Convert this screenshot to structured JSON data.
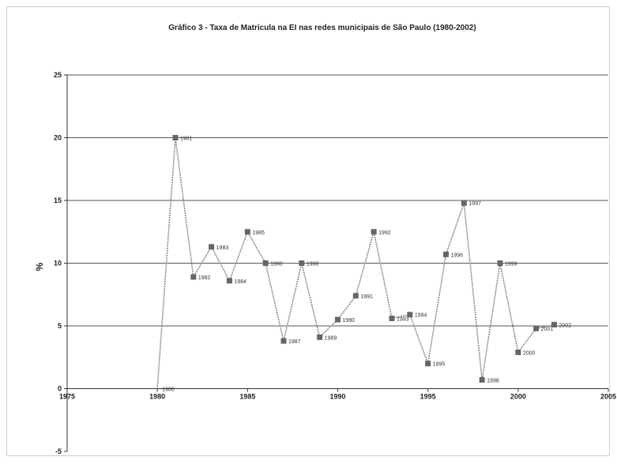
{
  "chart_data": {
    "type": "line",
    "title": "Gráfico 3 - Taxa de Matrícula na EI nas redes municipais de São Paulo (1980-2002)",
    "xlabel": "",
    "ylabel": "%",
    "xlim": [
      1975,
      2005
    ],
    "ylim": [
      -5,
      25
    ],
    "x_ticks": [
      1975,
      1980,
      1985,
      1990,
      1995,
      2000,
      2005
    ],
    "x_tick_labels": [
      "1975",
      "1980",
      "1985",
      "1990",
      "1995",
      "2000",
      "2005"
    ],
    "y_ticks": [
      -5,
      0,
      5,
      10,
      15,
      20,
      25
    ],
    "y_tick_labels": [
      "-5",
      "0",
      "5",
      "10",
      "15",
      "20",
      "25"
    ],
    "grid": "horizontal",
    "legend": "none",
    "series": [
      {
        "x": [
          1980,
          1981,
          1982,
          1983,
          1984,
          1985,
          1986,
          1987,
          1988,
          1989,
          1990,
          1991,
          1992,
          1993,
          1994,
          1995,
          1996,
          1997,
          1998,
          1999,
          2000,
          2001,
          2002
        ],
        "y": [
          0,
          20,
          8.9,
          11.3,
          8.6,
          12.5,
          10,
          3.8,
          10,
          4.1,
          5.5,
          7.4,
          12.5,
          5.6,
          5.9,
          2,
          10.7,
          14.8,
          0.7,
          10,
          2.9,
          4.8,
          5.1
        ],
        "point_labels": [
          "1980",
          "1981",
          "1982",
          "1983",
          "1984",
          "1985",
          "1986",
          "1987",
          "1988",
          "1989",
          "1990",
          "1991",
          "1992",
          "1993",
          "1994",
          "1995",
          "1996",
          "1997",
          "1998",
          "1999",
          "2000",
          "2001",
          "2002"
        ]
      }
    ]
  },
  "colors": {
    "line": "#8c8c8c",
    "marker": "#666666",
    "grid": "#555555",
    "frame": "#cfcfcf"
  }
}
